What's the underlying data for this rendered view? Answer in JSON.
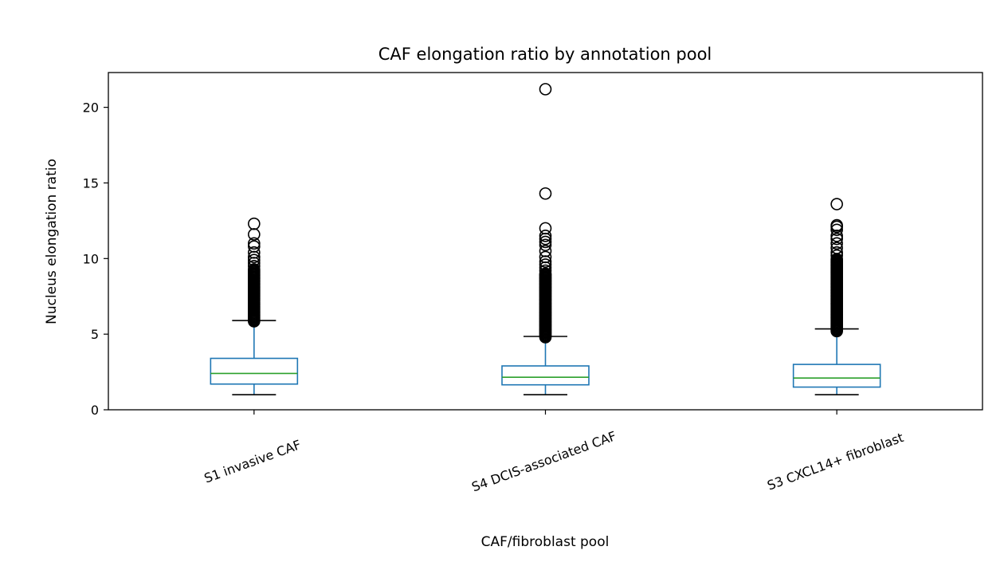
{
  "chart_data": {
    "type": "box",
    "title": "CAF elongation ratio by annotation pool",
    "xlabel": "CAF/fibroblast pool",
    "ylabel": "Nucleus elongation ratio",
    "ylim": [
      0,
      22.3
    ],
    "yticks": [
      0,
      5,
      10,
      15,
      20
    ],
    "grid": false,
    "categories": [
      "S1 invasive CAF",
      "S4 DCIS-associated CAF",
      "S3 CXCL14+ fibroblast"
    ],
    "boxes": [
      {
        "category": "S1 invasive CAF",
        "whisker_low": 1.0,
        "q1": 1.7,
        "median": 2.4,
        "q3": 3.4,
        "whisker_high": 5.9,
        "outlier_dense_range": [
          5.85,
          9.3
        ],
        "outliers": [
          9.5,
          9.7,
          9.9,
          10.1,
          10.4,
          10.8,
          11.0,
          11.6,
          12.3
        ]
      },
      {
        "category": "S4 DCIS-associated CAF",
        "whisker_low": 1.0,
        "q1": 1.65,
        "median": 2.15,
        "q3": 2.9,
        "whisker_high": 4.85,
        "outlier_dense_range": [
          4.8,
          9.0
        ],
        "outliers": [
          9.2,
          9.4,
          9.6,
          9.8,
          10.1,
          10.5,
          10.9,
          11.1,
          11.3,
          11.5,
          12.0,
          14.3,
          21.2
        ]
      },
      {
        "category": "S3 CXCL14+ fibroblast",
        "whisker_low": 1.0,
        "q1": 1.5,
        "median": 2.1,
        "q3": 3.0,
        "whisker_high": 5.35,
        "outlier_dense_range": [
          5.2,
          10.0
        ],
        "outliers": [
          10.2,
          10.4,
          10.7,
          11.0,
          11.3,
          11.5,
          11.9,
          12.1,
          12.2,
          13.6
        ]
      }
    ],
    "colors": {
      "box": "#1f77b4",
      "median": "#2ca02c",
      "cap": "#000000",
      "outlier": "#000000"
    }
  }
}
